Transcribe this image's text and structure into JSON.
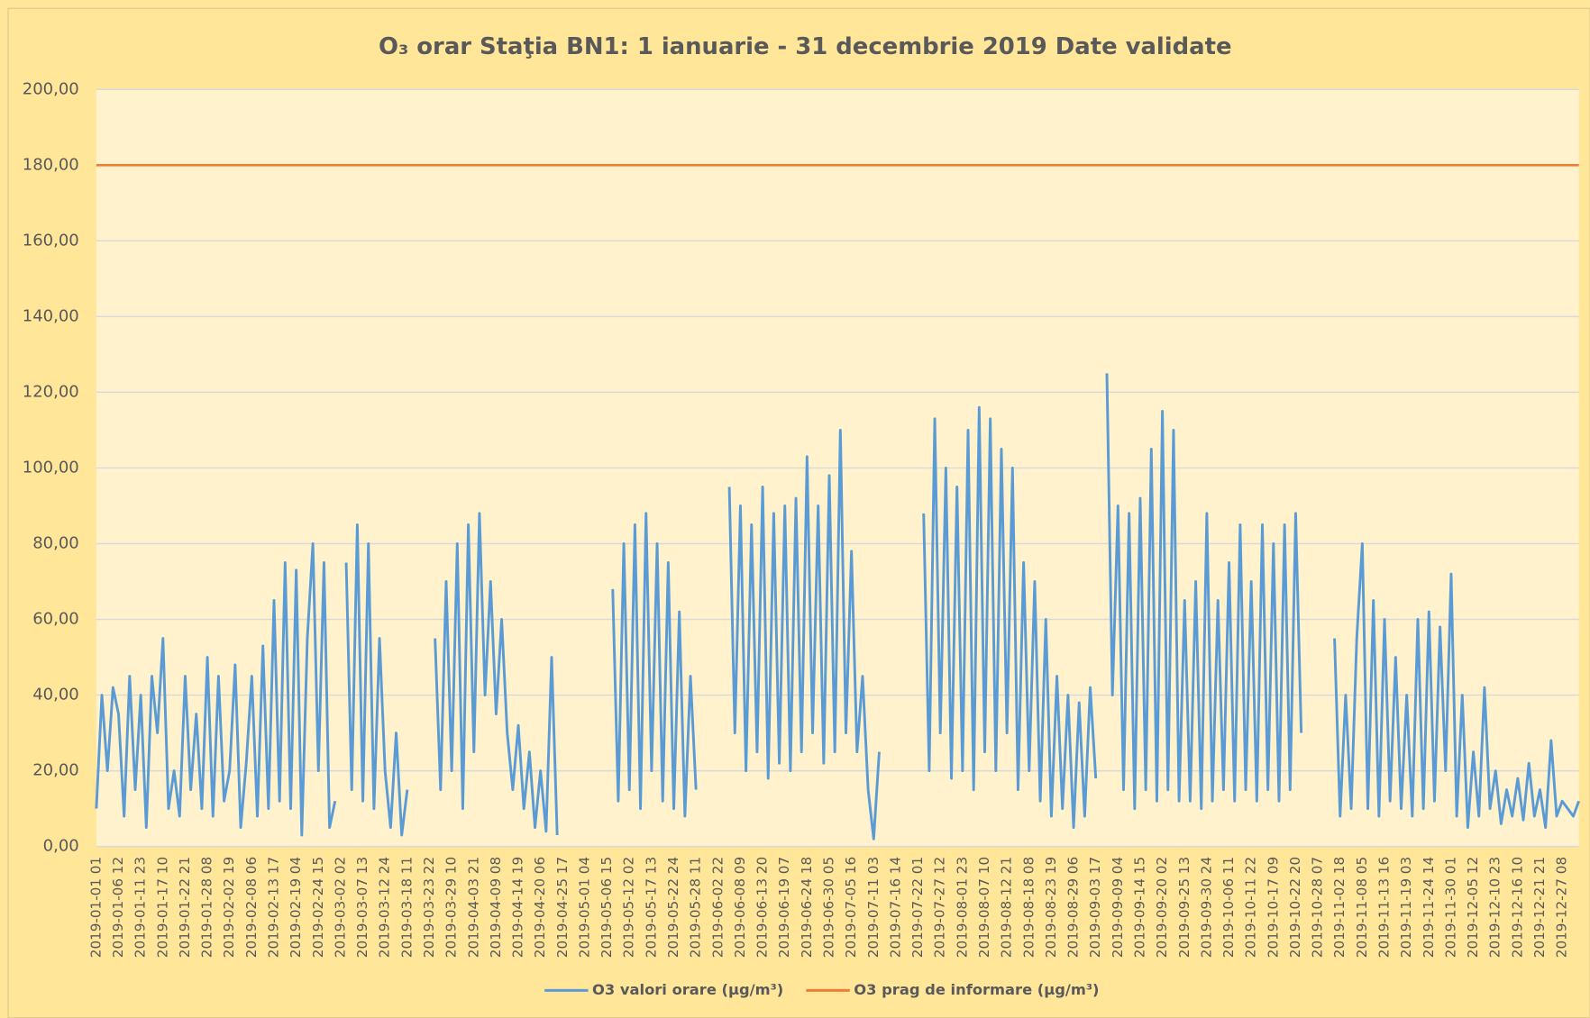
{
  "chart_data": {
    "type": "line",
    "title": "O₃ orar Staţia BN1: 1 ianuarie - 31 decembrie 2019 Date validate",
    "categories": [
      "2019-01-01 01",
      null,
      null,
      null,
      "2019-01-06 12",
      null,
      null,
      null,
      "2019-01-11 23",
      null,
      null,
      null,
      "2019-01-17 10",
      null,
      null,
      null,
      "2019-01-22 21",
      null,
      null,
      null,
      "2019-01-28 08",
      null,
      null,
      null,
      "2019-02-02 19",
      null,
      null,
      null,
      "2019-02-08 06",
      null,
      null,
      null,
      "2019-02-13 17",
      null,
      null,
      null,
      "2019-02-19 04",
      null,
      null,
      null,
      "2019-02-24 15",
      null,
      null,
      null,
      "2019-03-02 02",
      null,
      null,
      null,
      "2019-03-07 13",
      null,
      null,
      null,
      "2019-03-12 24",
      null,
      null,
      null,
      "2019-03-18 11",
      null,
      null,
      null,
      "2019-03-23 22",
      null,
      null,
      null,
      "2019-03-29 10",
      null,
      null,
      null,
      "2019-04-03 21",
      null,
      null,
      null,
      "2019-04-09 08",
      null,
      null,
      null,
      "2019-04-14 19",
      null,
      null,
      null,
      "2019-04-20 06",
      null,
      null,
      null,
      "2019-04-25 17",
      null,
      null,
      null,
      "2019-05-01 04",
      null,
      null,
      null,
      "2019-05-06 15",
      null,
      null,
      null,
      "2019-05-12 02",
      null,
      null,
      null,
      "2019-05-17 13",
      null,
      null,
      null,
      "2019-05-22 24",
      null,
      null,
      null,
      "2019-05-28 11",
      null,
      null,
      null,
      "2019-06-02 22",
      null,
      null,
      null,
      "2019-06-08 09",
      null,
      null,
      null,
      "2019-06-13 20",
      null,
      null,
      null,
      "2019-06-19 07",
      null,
      null,
      null,
      "2019-06-24 18",
      null,
      null,
      null,
      "2019-06-30 05",
      null,
      null,
      null,
      "2019-07-05 16",
      null,
      null,
      null,
      "2019-07-11 03",
      null,
      null,
      null,
      "2019-07-16 14",
      null,
      null,
      null,
      "2019-07-22 01",
      null,
      null,
      null,
      "2019-07-27 12",
      null,
      null,
      null,
      "2019-08-01 23",
      null,
      null,
      null,
      "2019-08-07 10",
      null,
      null,
      null,
      "2019-08-12 21",
      null,
      null,
      null,
      "2019-08-18 08",
      null,
      null,
      null,
      "2019-08-23 19",
      null,
      null,
      null,
      "2019-08-29 06",
      null,
      null,
      null,
      "2019-09-03 17",
      null,
      null,
      null,
      "2019-09-09 04",
      null,
      null,
      null,
      "2019-09-14 15",
      null,
      null,
      null,
      "2019-09-20 02",
      null,
      null,
      null,
      "2019-09-25 13",
      null,
      null,
      null,
      "2019-09-30 24",
      null,
      null,
      null,
      "2019-10-06 11",
      null,
      null,
      null,
      "2019-10-11 22",
      null,
      null,
      null,
      "2019-10-17 09",
      null,
      null,
      null,
      "2019-10-22 20",
      null,
      null,
      null,
      "2019-10-28 07",
      null,
      null,
      null,
      "2019-11-02 18",
      null,
      null,
      null,
      "2019-11-08 05",
      null,
      null,
      null,
      "2019-11-13 16",
      null,
      null,
      null,
      "2019-11-19 03",
      null,
      null,
      null,
      "2019-11-24 14",
      null,
      null,
      null,
      "2019-11-30 01",
      null,
      null,
      null,
      "2019-12-05 12",
      null,
      null,
      null,
      "2019-12-10 23",
      null,
      null,
      null,
      "2019-12-16 10",
      null,
      null,
      null,
      "2019-12-21 21",
      null,
      null,
      null,
      "2019-12-27 08",
      null,
      null,
      null
    ],
    "series": [
      {
        "name": "O3 valori orare (µg/m³)",
        "color": "#5b9bd5",
        "values": [
          10,
          40,
          20,
          42,
          35,
          8,
          45,
          15,
          40,
          5,
          45,
          30,
          55,
          10,
          20,
          8,
          45,
          15,
          35,
          10,
          50,
          8,
          45,
          12,
          20,
          48,
          5,
          22,
          45,
          8,
          53,
          10,
          65,
          12,
          75,
          10,
          73,
          3,
          55,
          80,
          20,
          75,
          5,
          12,
          null,
          75,
          15,
          85,
          12,
          80,
          10,
          55,
          20,
          5,
          30,
          3,
          15,
          null,
          null,
          null,
          null,
          55,
          15,
          70,
          20,
          80,
          10,
          85,
          25,
          88,
          40,
          70,
          35,
          60,
          30,
          15,
          32,
          10,
          25,
          5,
          20,
          4,
          50,
          3,
          null,
          null,
          null,
          null,
          null,
          null,
          null,
          null,
          null,
          68,
          12,
          80,
          15,
          85,
          10,
          88,
          20,
          80,
          12,
          75,
          10,
          62,
          8,
          45,
          15,
          null,
          null,
          null,
          null,
          null,
          95,
          30,
          90,
          20,
          85,
          25,
          95,
          18,
          88,
          22,
          90,
          20,
          92,
          25,
          103,
          30,
          90,
          22,
          98,
          25,
          110,
          30,
          78,
          25,
          45,
          15,
          2,
          25,
          null,
          null,
          null,
          null,
          null,
          null,
          null,
          88,
          20,
          113,
          30,
          100,
          18,
          95,
          20,
          110,
          15,
          116,
          25,
          113,
          20,
          105,
          30,
          100,
          15,
          75,
          20,
          70,
          12,
          60,
          8,
          45,
          10,
          40,
          5,
          38,
          8,
          42,
          18,
          null,
          125,
          40,
          90,
          15,
          88,
          10,
          92,
          15,
          105,
          12,
          115,
          15,
          110,
          12,
          65,
          12,
          70,
          10,
          88,
          12,
          65,
          15,
          75,
          12,
          85,
          15,
          70,
          12,
          85,
          15,
          80,
          12,
          85,
          15,
          88,
          30,
          null,
          null,
          null,
          null,
          null,
          55,
          8,
          40,
          10,
          55,
          80,
          10,
          65,
          8,
          60,
          12,
          50,
          10,
          40,
          8,
          60,
          10,
          62,
          12,
          58,
          20,
          72,
          8,
          40,
          5,
          25,
          8,
          42,
          10,
          20,
          6,
          15,
          8,
          18,
          7,
          22,
          8,
          15,
          5,
          28,
          8,
          12,
          10,
          8,
          12
        ]
      },
      {
        "name": "O3 prag de informare (µg/m³)",
        "color": "#ed7d31",
        "values": [
          180,
          180,
          180,
          180,
          180,
          180,
          180,
          180,
          180,
          180,
          180,
          180,
          180,
          180,
          180,
          180,
          180,
          180,
          180,
          180,
          180,
          180,
          180,
          180,
          180,
          180,
          180,
          180,
          180,
          180,
          180,
          180,
          180,
          180,
          180,
          180,
          180,
          180,
          180,
          180,
          180,
          180,
          180,
          180,
          180,
          180,
          180,
          180,
          180,
          180,
          180,
          180,
          180,
          180,
          180,
          180,
          180,
          180,
          180,
          180,
          180,
          180,
          180,
          180,
          180,
          180,
          180,
          180,
          180,
          180,
          180,
          180,
          180,
          180,
          180,
          180,
          180,
          180,
          180,
          180,
          180,
          180,
          180,
          180,
          180,
          180,
          180,
          180,
          180,
          180,
          180,
          180,
          180,
          180,
          180,
          180,
          180,
          180,
          180,
          180,
          180,
          180,
          180,
          180,
          180,
          180,
          180,
          180,
          180,
          180,
          180,
          180,
          180,
          180,
          180,
          180,
          180,
          180,
          180,
          180,
          180,
          180,
          180,
          180,
          180,
          180,
          180,
          180,
          180,
          180,
          180,
          180,
          180,
          180,
          180,
          180,
          180,
          180,
          180,
          180,
          180,
          180,
          180,
          180,
          180,
          180,
          180,
          180,
          180,
          180,
          180,
          180,
          180,
          180,
          180,
          180,
          180,
          180,
          180,
          180,
          180,
          180,
          180,
          180,
          180,
          180,
          180,
          180,
          180,
          180,
          180,
          180,
          180,
          180,
          180,
          180,
          180,
          180,
          180,
          180,
          180,
          180,
          180,
          180,
          180,
          180,
          180,
          180,
          180,
          180,
          180,
          180,
          180,
          180,
          180,
          180,
          180,
          180,
          180,
          180,
          180,
          180,
          180,
          180,
          180,
          180,
          180,
          180,
          180,
          180,
          180,
          180,
          180,
          180,
          180,
          180,
          180,
          180,
          180,
          180,
          180,
          180,
          180,
          180,
          180,
          180,
          180,
          180,
          180,
          180,
          180,
          180,
          180,
          180,
          180,
          180,
          180,
          180,
          180,
          180,
          180,
          180,
          180,
          180,
          180,
          180,
          180,
          180,
          180,
          180,
          180,
          180,
          180,
          180,
          180,
          180,
          180,
          180,
          180,
          180,
          180,
          180,
          180,
          180,
          180,
          180,
          180,
          180
        ]
      }
    ],
    "ylim": [
      0,
      200
    ],
    "yticks": [
      {
        "value": 0,
        "label": "0,00"
      },
      {
        "value": 20,
        "label": "20,00"
      },
      {
        "value": 40,
        "label": "40,00"
      },
      {
        "value": 60,
        "label": "60,00"
      },
      {
        "value": 80,
        "label": "80,00"
      },
      {
        "value": 100,
        "label": "100,00"
      },
      {
        "value": 120,
        "label": "120,00"
      },
      {
        "value": 140,
        "label": "140,00"
      },
      {
        "value": 160,
        "label": "160,00"
      },
      {
        "value": 180,
        "label": "180,00"
      },
      {
        "value": 200,
        "label": "200,00"
      }
    ],
    "grid": true,
    "legend": "bottom"
  }
}
